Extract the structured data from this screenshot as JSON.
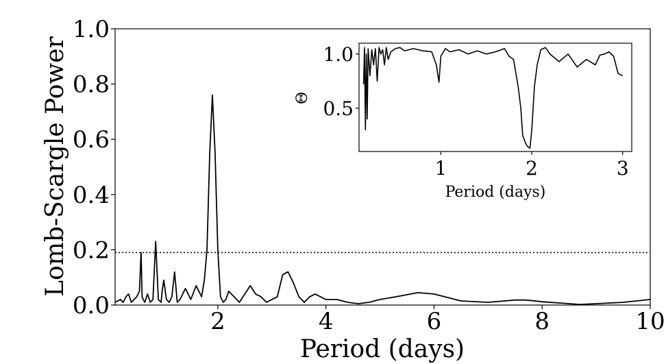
{
  "chart_data": [
    {
      "type": "line",
      "xlabel": "Period (days)",
      "ylabel": "Lomb-Scargle Power",
      "xlim": [
        0.1,
        10
      ],
      "ylim": [
        0,
        1.0
      ],
      "xticks": [
        "2",
        "4",
        "6",
        "8",
        "10"
      ],
      "yticks": [
        "0.0",
        "0.2",
        "0.4",
        "0.6",
        "0.8",
        "1.0"
      ],
      "grid": false,
      "threshold": 0.19,
      "threshold_style": "dotted",
      "series": [
        {
          "color": "#000000",
          "x": [
            0.1,
            0.2,
            0.25,
            0.3,
            0.35,
            0.4,
            0.45,
            0.5,
            0.55,
            0.58,
            0.6,
            0.62,
            0.65,
            0.7,
            0.75,
            0.8,
            0.85,
            0.9,
            0.95,
            0.97,
            1.0,
            1.05,
            1.1,
            1.15,
            1.2,
            1.25,
            1.3,
            1.35,
            1.4,
            1.5,
            1.6,
            1.7,
            1.75,
            1.8,
            1.85,
            1.9,
            1.95,
            2.0,
            2.05,
            2.1,
            2.15,
            2.2,
            2.3,
            2.4,
            2.5,
            2.6,
            2.7,
            2.8,
            2.9,
            3.0,
            3.1,
            3.2,
            3.3,
            3.4,
            3.5,
            3.6,
            3.7,
            3.8,
            3.9,
            4.0,
            4.2,
            4.4,
            4.6,
            4.8,
            5.0,
            5.3,
            5.7,
            6.0,
            6.5,
            7.0,
            7.5,
            7.7,
            8.0,
            8.5,
            8.7,
            9.0,
            9.5,
            10.0
          ],
          "values": [
            0.01,
            0.02,
            0.01,
            0.03,
            0.04,
            0.01,
            0.02,
            0.03,
            0.05,
            0.19,
            0.03,
            0.02,
            0.01,
            0.04,
            0.01,
            0.02,
            0.23,
            0.02,
            0.01,
            0.05,
            0.09,
            0.02,
            0.01,
            0.03,
            0.12,
            0.01,
            0.02,
            0.04,
            0.06,
            0.02,
            0.07,
            0.03,
            0.09,
            0.2,
            0.55,
            0.76,
            0.55,
            0.2,
            0.03,
            0.01,
            0.02,
            0.05,
            0.03,
            0.01,
            0.04,
            0.07,
            0.04,
            0.03,
            0.01,
            0.02,
            0.03,
            0.11,
            0.12,
            0.08,
            0.03,
            0.01,
            0.03,
            0.04,
            0.03,
            0.02,
            0.02,
            0.01,
            0.005,
            0.01,
            0.02,
            0.03,
            0.045,
            0.04,
            0.015,
            0.01,
            0.018,
            0.018,
            0.012,
            0.005,
            0.002,
            0.005,
            0.01,
            0.02
          ]
        }
      ]
    },
    {
      "type": "line",
      "xlabel": "Period (days)",
      "ylabel": "Θ",
      "xlim": [
        0.1,
        3.1
      ],
      "ylim": [
        0.1,
        1.1
      ],
      "xticks": [
        "1",
        "2",
        "3"
      ],
      "yticks": [
        "0.5",
        "1.0"
      ],
      "grid": false,
      "series": [
        {
          "color": "#000000",
          "x": [
            0.15,
            0.16,
            0.17,
            0.18,
            0.19,
            0.2,
            0.22,
            0.24,
            0.26,
            0.28,
            0.3,
            0.32,
            0.34,
            0.36,
            0.38,
            0.4,
            0.42,
            0.45,
            0.5,
            0.55,
            0.6,
            0.7,
            0.8,
            0.9,
            0.95,
            0.98,
            1.0,
            1.05,
            1.1,
            1.2,
            1.3,
            1.4,
            1.5,
            1.6,
            1.7,
            1.75,
            1.8,
            1.85,
            1.88,
            1.9,
            1.93,
            1.95,
            1.98,
            2.0,
            2.03,
            2.06,
            2.1,
            2.15,
            2.2,
            2.3,
            2.4,
            2.5,
            2.6,
            2.7,
            2.75,
            2.8,
            2.85,
            2.9,
            2.95,
            3.0
          ],
          "values": [
            0.72,
            1.06,
            0.3,
            1.0,
            0.4,
            1.05,
            0.8,
            1.04,
            0.9,
            1.05,
            0.75,
            1.06,
            1.0,
            1.04,
            0.9,
            1.06,
            0.95,
            1.02,
            1.05,
            1.06,
            1.03,
            1.05,
            1.03,
            1.02,
            0.9,
            0.74,
            0.98,
            1.05,
            1.02,
            1.04,
            1.0,
            1.03,
            1.0,
            1.02,
            1.05,
            0.98,
            0.95,
            0.7,
            0.5,
            0.25,
            0.18,
            0.15,
            0.13,
            0.3,
            0.7,
            0.9,
            1.04,
            1.06,
            1.0,
            0.93,
            1.0,
            0.88,
            0.95,
            0.9,
            0.99,
            1.0,
            1.02,
            0.98,
            0.82,
            0.8
          ]
        }
      ]
    }
  ]
}
